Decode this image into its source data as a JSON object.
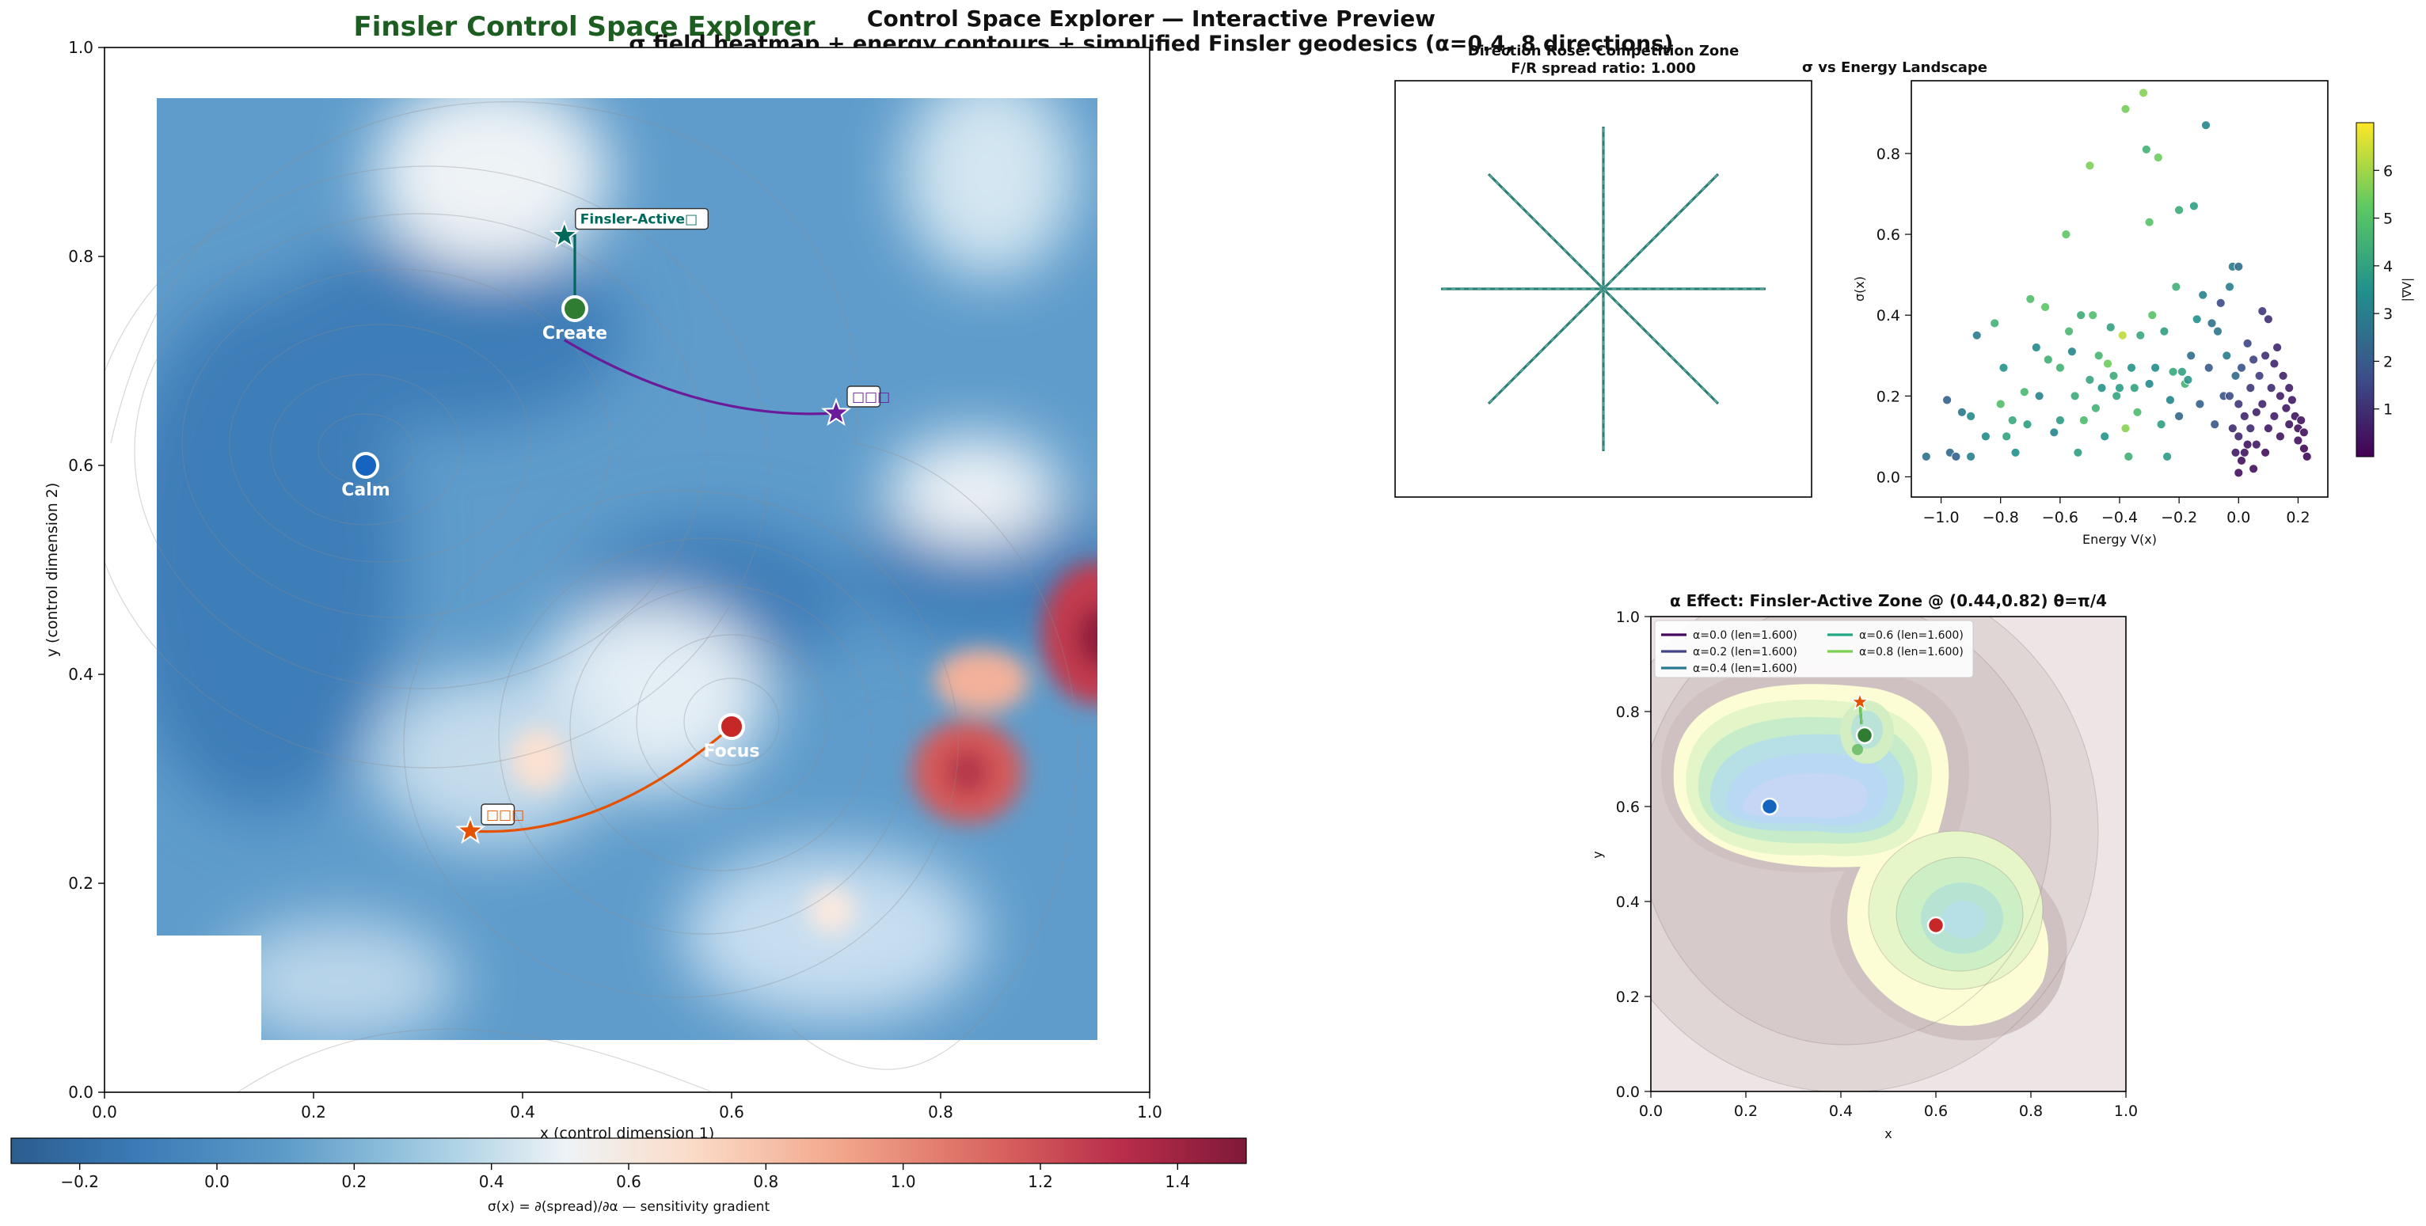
{
  "header": {
    "app_title": "Finsler Control Space Explorer",
    "title": "Control Space Explorer — Interactive Preview",
    "subtitle": "σ field heatmap + energy contours + simplified Finsler geodesics (α=0.4, 8 directions)"
  },
  "colors": {
    "app_title": "#1b5e20",
    "calm": "#1565c0",
    "create": "#2e7d32",
    "focus": "#c62828",
    "finsler": "#00695c",
    "purple": "#6a1b9a",
    "orange": "#e65100"
  },
  "chart_data": [
    {
      "id": "main",
      "type": "heatmap",
      "title": "",
      "xlabel": "x (control dimension 1)",
      "ylabel": "y (control dimension 2)",
      "xlim": [
        0,
        1
      ],
      "ylim": [
        0,
        1
      ],
      "x_ticks": [
        "0.0",
        "0.2",
        "0.4",
        "0.6",
        "0.8",
        "1.0"
      ],
      "y_ticks": [
        "0.0",
        "0.2",
        "0.4",
        "0.6",
        "0.8",
        "1.0"
      ],
      "grid": false,
      "colormap": "RdBu_r",
      "colorbar": {
        "label": "σ(x) = ∂(spread)/∂α  — sensitivity gradient",
        "range": [
          -0.3,
          1.5
        ],
        "ticks": [
          "−0.2",
          "0.0",
          "0.2",
          "0.4",
          "0.6",
          "0.8",
          "1.0",
          "1.2",
          "1.4"
        ]
      },
      "field_extent": {
        "x": [
          0.05,
          0.95
        ],
        "y": [
          0.05,
          0.95
        ],
        "missing_corner": {
          "x": [
            0.05,
            0.15
          ],
          "y": [
            0.05,
            0.15
          ]
        }
      },
      "attractors": [
        {
          "name": "Calm",
          "x": 0.25,
          "y": 0.6,
          "color": "#1565c0"
        },
        {
          "name": "Create",
          "x": 0.45,
          "y": 0.75,
          "color": "#2e7d32"
        },
        {
          "name": "Focus",
          "x": 0.6,
          "y": 0.35,
          "color": "#c62828"
        }
      ],
      "stars": [
        {
          "label": "Finsler-Active□",
          "x": 0.44,
          "y": 0.82,
          "color": "#00695c"
        },
        {
          "label": "□□□",
          "x": 0.7,
          "y": 0.65,
          "color": "#6a1b9a"
        },
        {
          "label": "□□□",
          "x": 0.35,
          "y": 0.25,
          "color": "#e65100"
        }
      ],
      "geodesics": [
        {
          "from": [
            0.45,
            0.75
          ],
          "to": [
            0.44,
            0.82
          ],
          "color": "#00695c"
        },
        {
          "from": [
            0.44,
            0.72
          ],
          "to": [
            0.7,
            0.65
          ],
          "color": "#6a1b9a"
        },
        {
          "from": [
            0.6,
            0.35
          ],
          "to": [
            0.35,
            0.25
          ],
          "color": "#e65100"
        }
      ]
    },
    {
      "id": "rose",
      "type": "line",
      "title": "Direction Rose: Competition Zone",
      "subtitle": "F/R spread ratio: 1.000",
      "directions": 8,
      "lengths": [
        1,
        1,
        1,
        1,
        1,
        1,
        1,
        1
      ],
      "color": "#2a7f74"
    },
    {
      "id": "scatter",
      "type": "scatter",
      "title": "σ vs Energy Landscape",
      "xlabel": "Energy V(x)",
      "ylabel": "σ(x)",
      "xlim": [
        -1.1,
        0.3
      ],
      "ylim": [
        -0.05,
        0.98
      ],
      "x_ticks": [
        -1.0,
        -0.8,
        -0.6,
        -0.4,
        -0.2,
        0.0,
        0.2
      ],
      "y_ticks": [
        0.0,
        0.2,
        0.4,
        0.6,
        0.8
      ],
      "colormap": "viridis",
      "colorbar": {
        "label": "|∇V|",
        "range": [
          0,
          7
        ],
        "ticks": [
          1,
          2,
          3,
          4,
          5,
          6
        ]
      },
      "points": [
        [
          -1.05,
          0.05,
          2.6
        ],
        [
          -0.98,
          0.19,
          2.2
        ],
        [
          -0.97,
          0.06,
          2.4
        ],
        [
          -0.95,
          0.05,
          2.1
        ],
        [
          -0.93,
          0.16,
          2.8
        ],
        [
          -0.9,
          0.15,
          3.3
        ],
        [
          -0.9,
          0.05,
          3.0
        ],
        [
          -0.88,
          0.35,
          2.9
        ],
        [
          -0.85,
          0.1,
          3.4
        ],
        [
          -0.82,
          0.38,
          4.5
        ],
        [
          -0.8,
          0.18,
          4.9
        ],
        [
          -0.79,
          0.27,
          3.6
        ],
        [
          -0.78,
          0.1,
          4.0
        ],
        [
          -0.76,
          0.14,
          4.2
        ],
        [
          -0.75,
          0.06,
          3.5
        ],
        [
          -0.72,
          0.21,
          4.7
        ],
        [
          -0.71,
          0.13,
          3.9
        ],
        [
          -0.7,
          0.44,
          4.9
        ],
        [
          -0.68,
          0.32,
          3.3
        ],
        [
          -0.67,
          0.2,
          3.1
        ],
        [
          -0.65,
          0.42,
          5.2
        ],
        [
          -0.64,
          0.29,
          4.4
        ],
        [
          -0.62,
          0.11,
          3.2
        ],
        [
          -0.6,
          0.14,
          3.8
        ],
        [
          -0.6,
          0.27,
          4.5
        ],
        [
          -0.58,
          0.6,
          5.2
        ],
        [
          -0.57,
          0.36,
          4.7
        ],
        [
          -0.56,
          0.31,
          3.2
        ],
        [
          -0.55,
          0.2,
          4.3
        ],
        [
          -0.54,
          0.06,
          3.9
        ],
        [
          -0.53,
          0.4,
          4.3
        ],
        [
          -0.52,
          0.14,
          4.8
        ],
        [
          -0.5,
          0.77,
          5.6
        ],
        [
          -0.5,
          0.24,
          4.1
        ],
        [
          -0.49,
          0.4,
          4.9
        ],
        [
          -0.48,
          0.17,
          4.5
        ],
        [
          -0.47,
          0.3,
          4.6
        ],
        [
          -0.46,
          0.22,
          3.6
        ],
        [
          -0.45,
          0.1,
          3.6
        ],
        [
          -0.44,
          0.28,
          5.4
        ],
        [
          -0.43,
          0.37,
          4.0
        ],
        [
          -0.42,
          0.25,
          4.3
        ],
        [
          -0.41,
          0.2,
          4.1
        ],
        [
          -0.4,
          0.22,
          3.8
        ],
        [
          -0.39,
          0.35,
          6.3
        ],
        [
          -0.38,
          0.12,
          5.7
        ],
        [
          -0.38,
          0.91,
          5.5
        ],
        [
          -0.37,
          0.05,
          4.4
        ],
        [
          -0.36,
          0.27,
          3.6
        ],
        [
          -0.35,
          0.22,
          4.0
        ],
        [
          -0.34,
          0.16,
          4.8
        ],
        [
          -0.33,
          0.35,
          4.2
        ],
        [
          -0.32,
          0.95,
          5.7
        ],
        [
          -0.31,
          0.81,
          4.5
        ],
        [
          -0.3,
          0.63,
          5.0
        ],
        [
          -0.3,
          0.23,
          3.3
        ],
        [
          -0.29,
          0.4,
          5.0
        ],
        [
          -0.28,
          0.27,
          3.4
        ],
        [
          -0.27,
          0.79,
          5.4
        ],
        [
          -0.26,
          0.13,
          3.9
        ],
        [
          -0.25,
          0.36,
          3.9
        ],
        [
          -0.24,
          0.05,
          3.8
        ],
        [
          -0.23,
          0.19,
          3.2
        ],
        [
          -0.22,
          0.26,
          4.2
        ],
        [
          -0.21,
          0.47,
          4.4
        ],
        [
          -0.2,
          0.66,
          4.3
        ],
        [
          -0.2,
          0.15,
          2.3
        ],
        [
          -0.19,
          0.26,
          4.0
        ],
        [
          -0.18,
          0.23,
          4.5
        ],
        [
          -0.17,
          0.24,
          3.7
        ],
        [
          -0.16,
          0.3,
          2.5
        ],
        [
          -0.15,
          0.67,
          3.9
        ],
        [
          -0.14,
          0.39,
          3.5
        ],
        [
          -0.13,
          0.18,
          2.2
        ],
        [
          -0.12,
          0.45,
          3.1
        ],
        [
          -0.11,
          0.87,
          3.2
        ],
        [
          -0.1,
          0.27,
          2.0
        ],
        [
          -0.09,
          0.38,
          2.6
        ],
        [
          -0.08,
          0.13,
          1.9
        ],
        [
          -0.07,
          0.36,
          2.7
        ],
        [
          -0.06,
          0.43,
          1.6
        ],
        [
          -0.05,
          0.2,
          1.8
        ],
        [
          -0.04,
          0.3,
          2.9
        ],
        [
          -0.03,
          0.47,
          3.0
        ],
        [
          -0.02,
          0.52,
          2.9
        ],
        [
          -0.01,
          0.25,
          2.4
        ],
        [
          0.0,
          0.52,
          2.5
        ],
        [
          0.0,
          0.1,
          0.8
        ],
        [
          0.0,
          0.18,
          1.2
        ],
        [
          0.0,
          0.01,
          0.3
        ],
        [
          0.01,
          0.04,
          0.3
        ],
        [
          0.01,
          0.27,
          1.8
        ],
        [
          0.02,
          0.15,
          0.8
        ],
        [
          0.02,
          0.06,
          0.4
        ],
        [
          0.03,
          0.33,
          1.5
        ],
        [
          0.04,
          0.12,
          0.9
        ],
        [
          0.04,
          0.22,
          1.2
        ],
        [
          0.05,
          0.29,
          1.4
        ],
        [
          0.06,
          0.16,
          0.7
        ],
        [
          0.06,
          0.08,
          0.5
        ],
        [
          0.07,
          0.25,
          1.3
        ],
        [
          0.08,
          0.41,
          1.2
        ],
        [
          0.08,
          0.18,
          0.8
        ],
        [
          0.09,
          0.3,
          1.0
        ],
        [
          0.1,
          0.12,
          0.5
        ],
        [
          0.1,
          0.39,
          1.0
        ],
        [
          0.11,
          0.22,
          0.9
        ],
        [
          0.12,
          0.15,
          0.6
        ],
        [
          0.12,
          0.28,
          0.8
        ],
        [
          0.13,
          0.32,
          0.8
        ],
        [
          0.14,
          0.1,
          0.4
        ],
        [
          0.14,
          0.2,
          0.6
        ],
        [
          0.15,
          0.25,
          0.7
        ],
        [
          0.16,
          0.17,
          0.5
        ],
        [
          0.17,
          0.22,
          0.6
        ],
        [
          0.17,
          0.13,
          0.4
        ],
        [
          0.18,
          0.19,
          0.5
        ],
        [
          0.19,
          0.15,
          0.4
        ],
        [
          0.2,
          0.12,
          0.3
        ],
        [
          0.2,
          0.09,
          0.3
        ],
        [
          0.21,
          0.14,
          0.4
        ],
        [
          0.22,
          0.07,
          0.2
        ],
        [
          0.22,
          0.11,
          0.3
        ],
        [
          0.23,
          0.05,
          0.2
        ],
        [
          -0.01,
          0.06,
          0.5
        ],
        [
          -0.02,
          0.12,
          0.9
        ],
        [
          0.03,
          0.08,
          0.4
        ],
        [
          -0.03,
          0.2,
          1.6
        ],
        [
          0.05,
          0.02,
          0.3
        ],
        [
          0.09,
          0.06,
          0.3
        ]
      ]
    },
    {
      "id": "alpha",
      "type": "line",
      "title": "α Effect: Finsler-Active Zone @ (0.44,0.82) θ=π/4",
      "xlabel": "x",
      "ylabel": "y",
      "xlim": [
        0,
        1
      ],
      "ylim": [
        0,
        1
      ],
      "x_ticks": [
        "0.0",
        "0.2",
        "0.4",
        "0.6",
        "0.8",
        "1.0"
      ],
      "y_ticks": [
        "0.0",
        "0.2",
        "0.4",
        "0.6",
        "0.8",
        "1.0"
      ],
      "legend_position": "top-left",
      "series": [
        {
          "name": "α=0.0 (len=1.600)",
          "color": "#46085c"
        },
        {
          "name": "α=0.2 (len=1.600)",
          "color": "#414487"
        },
        {
          "name": "α=0.4 (len=1.600)",
          "color": "#2a788e"
        },
        {
          "name": "α=0.6 (len=1.600)",
          "color": "#22a884"
        },
        {
          "name": "α=0.8 (len=1.600)",
          "color": "#7ad151"
        }
      ],
      "markers": [
        {
          "x": 0.25,
          "y": 0.6,
          "color": "#1565c0"
        },
        {
          "x": 0.45,
          "y": 0.75,
          "color": "#2e7d32"
        },
        {
          "x": 0.6,
          "y": 0.35,
          "color": "#c62828"
        }
      ],
      "start": {
        "x": 0.44,
        "y": 0.82,
        "color": "#e65100"
      }
    }
  ]
}
